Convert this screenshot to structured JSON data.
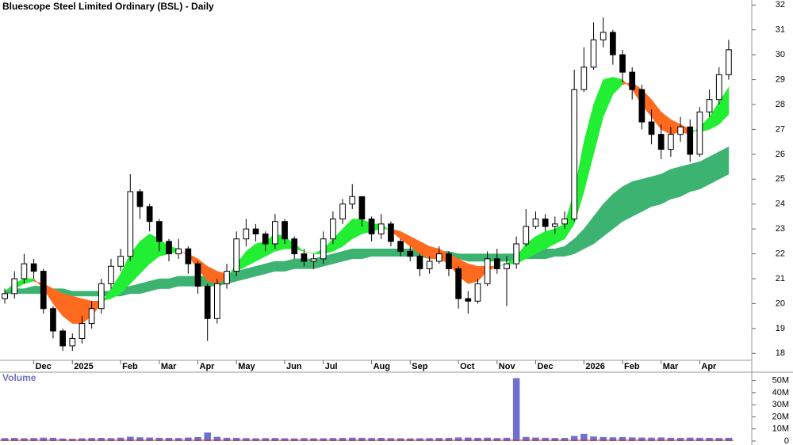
{
  "chart_data": [
    {
      "type": "candlestick",
      "title": "Bluescope Steel Limited Ordinary (BSL) - Daily",
      "categories": [
        null,
        null,
        null,
        "Dec",
        null,
        null,
        null,
        "2025",
        null,
        null,
        null,
        null,
        "Feb",
        null,
        null,
        null,
        "Mar",
        null,
        null,
        null,
        "Apr",
        null,
        null,
        null,
        "May",
        null,
        null,
        null,
        null,
        "Jun",
        null,
        null,
        null,
        "Jul",
        null,
        null,
        null,
        null,
        "Aug",
        null,
        null,
        null,
        "Sep",
        null,
        null,
        null,
        null,
        "Oct",
        null,
        null,
        null,
        "Nov",
        null,
        null,
        null,
        "Dec",
        null,
        null,
        null,
        null,
        "2026",
        null,
        null,
        null,
        "Feb",
        null,
        null,
        null,
        "Mar",
        null,
        null,
        null,
        "Apr",
        null,
        null,
        null
      ],
      "open": [
        20.2,
        20.4,
        21.0,
        21.6,
        21.3,
        19.8,
        18.9,
        18.3,
        18.6,
        19.2,
        19.8,
        20.8,
        21.5,
        21.9,
        24.5,
        23.9,
        23.3,
        22.5,
        22.0,
        22.2,
        21.6,
        20.7,
        19.4,
        20.8,
        21.3,
        22.6,
        23.0,
        22.8,
        22.4,
        23.3,
        22.6,
        22.0,
        21.7,
        21.8,
        22.6,
        23.4,
        24.0,
        24.3,
        23.4,
        22.8,
        23.2,
        22.5,
        22.1,
        21.9,
        21.4,
        21.7,
        22.0,
        21.4,
        20.2,
        20.1,
        20.8,
        21.8,
        21.4,
        21.6,
        22.4,
        23.1,
        23.4,
        23.1,
        23.2,
        23.4,
        28.6,
        29.5,
        30.6,
        30.9,
        30.0,
        29.3,
        28.6,
        27.3,
        26.8,
        26.2,
        26.8,
        27.1,
        26.0,
        27.7,
        28.2,
        29.2
      ],
      "high": [
        20.6,
        21.3,
        22.0,
        21.8,
        21.4,
        19.9,
        19.0,
        18.8,
        19.5,
        20.1,
        21.0,
        21.8,
        22.2,
        25.2,
        24.6,
        24.0,
        23.4,
        22.6,
        22.6,
        22.3,
        21.7,
        20.8,
        21.0,
        21.6,
        22.9,
        23.4,
        23.2,
        22.9,
        23.6,
        23.4,
        22.7,
        22.2,
        22.0,
        22.9,
        23.7,
        24.2,
        24.8,
        24.3,
        23.5,
        23.6,
        23.3,
        22.6,
        22.3,
        22.0,
        21.9,
        22.3,
        22.1,
        21.5,
        20.5,
        21.0,
        22.1,
        22.2,
        21.9,
        22.7,
        23.8,
        23.7,
        23.6,
        23.5,
        23.7,
        29.4,
        30.3,
        31.3,
        31.5,
        31.0,
        30.2,
        29.5,
        28.8,
        27.8,
        27.2,
        27.1,
        27.5,
        27.4,
        27.9,
        28.6,
        29.5,
        30.6
      ],
      "low": [
        20.0,
        20.2,
        20.8,
        21.0,
        19.6,
        18.6,
        18.1,
        18.1,
        18.4,
        19.0,
        19.6,
        20.6,
        21.3,
        21.7,
        23.4,
        22.9,
        22.1,
        21.7,
        21.8,
        21.2,
        20.4,
        18.5,
        19.2,
        20.6,
        21.1,
        22.3,
        22.5,
        22.1,
        22.2,
        22.4,
        21.8,
        21.5,
        21.4,
        21.6,
        22.4,
        23.2,
        23.8,
        23.1,
        22.5,
        22.6,
        22.3,
        21.9,
        21.7,
        21.1,
        21.2,
        21.6,
        21.1,
        19.8,
        19.6,
        20.0,
        20.7,
        21.2,
        19.9,
        21.4,
        22.3,
        23.0,
        22.9,
        22.8,
        23.0,
        23.3,
        28.5,
        29.4,
        30.3,
        29.6,
        28.9,
        28.2,
        27.0,
        26.4,
        25.8,
        25.9,
        26.5,
        25.7,
        25.9,
        27.5,
        28.0,
        29.0
      ],
      "close": [
        20.4,
        21.0,
        21.6,
        21.3,
        19.8,
        18.9,
        18.3,
        18.6,
        19.2,
        19.8,
        20.8,
        21.5,
        21.9,
        24.5,
        23.9,
        23.3,
        22.5,
        22.0,
        22.2,
        21.6,
        20.7,
        19.4,
        20.8,
        21.3,
        22.6,
        23.0,
        22.8,
        22.4,
        23.3,
        22.6,
        22.0,
        21.7,
        21.8,
        22.6,
        23.4,
        24.0,
        24.3,
        23.4,
        22.8,
        23.2,
        22.5,
        22.1,
        21.9,
        21.4,
        21.7,
        22.0,
        21.4,
        20.2,
        20.1,
        20.8,
        21.8,
        21.4,
        21.6,
        22.4,
        23.1,
        23.4,
        23.1,
        23.2,
        23.4,
        28.6,
        29.5,
        30.6,
        30.9,
        30.0,
        29.3,
        28.6,
        27.3,
        26.8,
        26.2,
        26.8,
        27.1,
        26.0,
        27.7,
        28.2,
        29.2,
        30.2
      ],
      "ribbons": [
        {
          "fast": [
            20.5,
            20.8,
            21.0,
            21.0,
            20.6,
            20.0,
            19.5,
            19.2,
            19.2,
            19.5,
            20.0,
            20.6,
            21.2,
            22.0,
            22.5,
            22.8,
            22.6,
            22.3,
            22.2,
            21.9,
            21.4,
            20.9,
            20.8,
            21.0,
            21.6,
            22.1,
            22.4,
            22.5,
            22.8,
            22.7,
            22.4,
            22.1,
            22.0,
            22.2,
            22.6,
            23.0,
            23.4,
            23.4,
            23.2,
            23.2,
            22.9,
            22.6,
            22.3,
            22.0,
            21.8,
            21.8,
            21.6,
            21.1,
            20.8,
            20.9,
            21.3,
            21.5,
            21.6,
            21.9,
            22.4,
            22.7,
            22.9,
            23.0,
            23.2,
            24.5,
            26.5,
            28.0,
            29.0,
            29.1,
            29.0,
            28.6,
            28.0,
            27.5,
            27.0,
            26.8,
            26.9,
            26.8,
            27.1,
            27.5,
            28.1,
            28.7
          ],
          "slow": [
            20.5,
            20.6,
            20.8,
            20.9,
            20.8,
            20.6,
            20.4,
            20.3,
            20.2,
            20.1,
            20.1,
            20.2,
            20.4,
            20.8,
            21.2,
            21.6,
            21.9,
            22.0,
            22.1,
            22.0,
            21.8,
            21.5,
            21.3,
            21.2,
            21.3,
            21.5,
            21.7,
            21.9,
            22.1,
            22.2,
            22.2,
            22.1,
            22.0,
            22.0,
            22.1,
            22.3,
            22.6,
            22.8,
            22.9,
            23.0,
            23.0,
            22.9,
            22.7,
            22.5,
            22.3,
            22.2,
            22.0,
            21.8,
            21.6,
            21.5,
            21.5,
            21.5,
            21.6,
            21.6,
            21.8,
            22.0,
            22.2,
            22.4,
            22.6,
            23.2,
            24.5,
            26.0,
            27.5,
            28.4,
            28.8,
            28.9,
            28.6,
            28.2,
            27.7,
            27.4,
            27.2,
            27.0,
            26.9,
            27.0,
            27.2,
            27.6
          ],
          "up_color": "#22ee33",
          "down_color": "#ff6a1f"
        },
        {
          "fast": [
            20.5,
            20.6,
            20.6,
            20.7,
            20.7,
            20.6,
            20.6,
            20.5,
            20.5,
            20.5,
            20.5,
            20.5,
            20.6,
            20.7,
            20.8,
            20.9,
            21.0,
            21.0,
            21.1,
            21.1,
            21.1,
            21.1,
            21.1,
            21.2,
            21.3,
            21.4,
            21.5,
            21.6,
            21.7,
            21.7,
            21.8,
            21.8,
            21.8,
            21.9,
            22.0,
            22.1,
            22.2,
            22.2,
            22.2,
            22.2,
            22.2,
            22.2,
            22.2,
            22.2,
            22.1,
            22.1,
            22.1,
            22.0,
            22.0,
            22.0,
            22.0,
            22.0,
            22.0,
            22.0,
            22.1,
            22.1,
            22.2,
            22.2,
            22.3,
            22.6,
            23.0,
            23.5,
            24.0,
            24.4,
            24.7,
            24.9,
            25.0,
            25.1,
            25.2,
            25.4,
            25.5,
            25.6,
            25.7,
            25.9,
            26.1,
            26.3
          ],
          "slow": [
            20.4,
            20.4,
            20.4,
            20.4,
            20.4,
            20.4,
            20.3,
            20.3,
            20.3,
            20.3,
            20.3,
            20.3,
            20.3,
            20.4,
            20.4,
            20.5,
            20.6,
            20.6,
            20.7,
            20.7,
            20.7,
            20.7,
            20.7,
            20.8,
            20.9,
            21.0,
            21.1,
            21.2,
            21.3,
            21.3,
            21.4,
            21.4,
            21.4,
            21.5,
            21.6,
            21.7,
            21.8,
            21.8,
            21.9,
            21.9,
            21.9,
            21.9,
            21.9,
            21.9,
            21.8,
            21.8,
            21.8,
            21.8,
            21.7,
            21.7,
            21.7,
            21.7,
            21.7,
            21.7,
            21.8,
            21.8,
            21.8,
            21.9,
            21.9,
            22.0,
            22.2,
            22.4,
            22.7,
            23.0,
            23.3,
            23.5,
            23.7,
            23.9,
            24.0,
            24.2,
            24.3,
            24.5,
            24.6,
            24.8,
            25.0,
            25.2
          ],
          "up_color": "#3cb371",
          "down_color": "#3cb371"
        }
      ],
      "up_color": "#ffffff",
      "down_color": "#000000",
      "ylim": [
        17.5,
        32.2
      ],
      "yticks": [
        18,
        19,
        20,
        21,
        22,
        23,
        24,
        25,
        26,
        27,
        28,
        29,
        30,
        31,
        32
      ]
    },
    {
      "type": "bar",
      "title": "Volume",
      "color": "#7070d0",
      "values": [
        2400000,
        2600000,
        2300000,
        2500000,
        2800000,
        2700000,
        2100000,
        1900000,
        2300000,
        2500000,
        2600000,
        2400000,
        2800000,
        3600000,
        3100000,
        2900000,
        2700000,
        2600000,
        2500000,
        2900000,
        3300000,
        7000000,
        3500000,
        2700000,
        2600000,
        2400000,
        2300000,
        2400000,
        2500000,
        2300000,
        2200000,
        2400000,
        2300000,
        2300000,
        2500000,
        2600000,
        2800000,
        2700000,
        2500000,
        2600000,
        2400000,
        2300000,
        2200000,
        2300000,
        2400000,
        2500000,
        2600000,
        3000000,
        2900000,
        2700000,
        2800000,
        2500000,
        2700000,
        52000000,
        3400000,
        2900000,
        2700000,
        2500000,
        2600000,
        4200000,
        6000000,
        3800000,
        3300000,
        3100000,
        3300000,
        3000000,
        2900000,
        2800000,
        3000000,
        2700000,
        2600000,
        2800000,
        2700000,
        2600000,
        2500000,
        2700000
      ],
      "ylim": [
        0,
        55000000
      ],
      "yticks": [
        0,
        {
          "value": 10000000,
          "label": "10M"
        },
        {
          "value": 20000000,
          "label": "20M"
        },
        {
          "value": 30000000,
          "label": "30M"
        },
        {
          "value": 40000000,
          "label": "40M"
        },
        {
          "value": 50000000,
          "label": "50M"
        }
      ]
    }
  ]
}
